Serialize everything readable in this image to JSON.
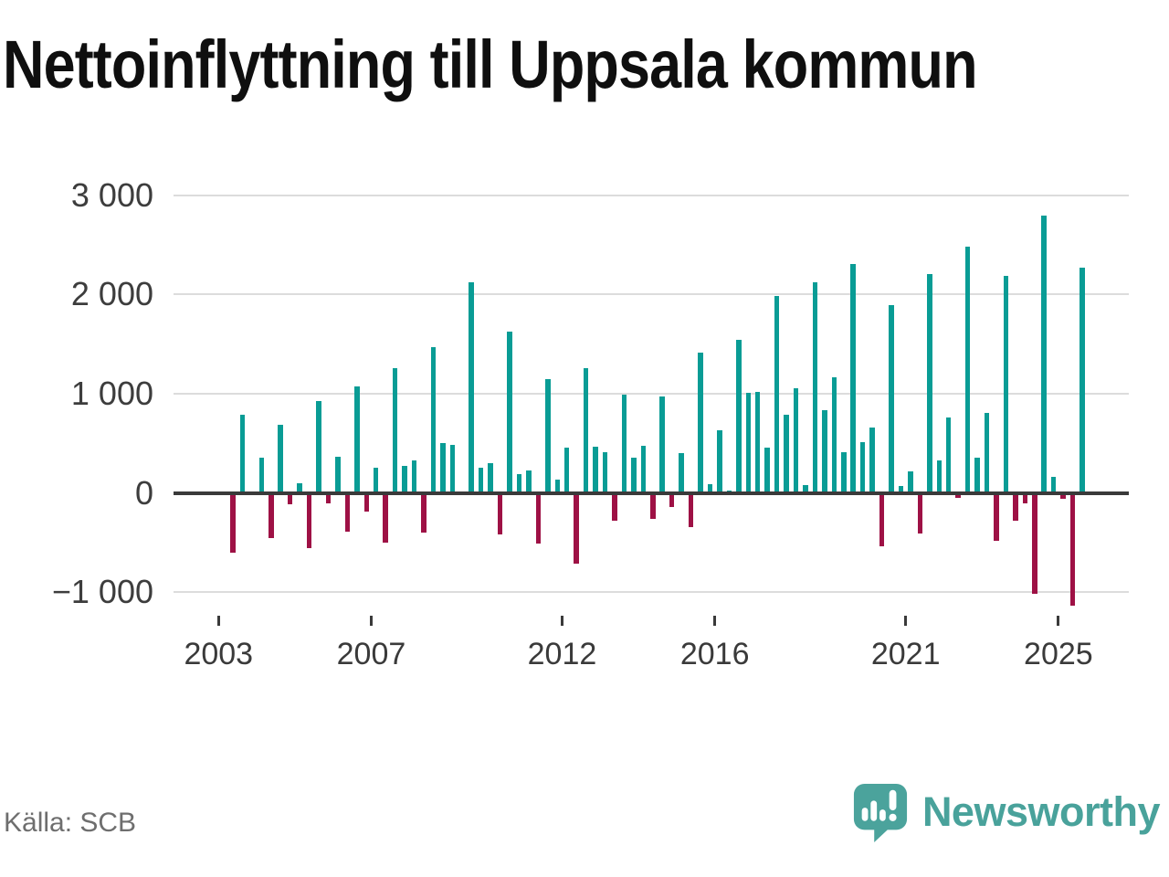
{
  "title": "Nettoinflyttning till Uppsala kommun",
  "source": "Källa: SCB",
  "branding": {
    "wordmark": "Newsworthy"
  },
  "chart_data": {
    "type": "bar",
    "title": "Nettoinflyttning till Uppsala kommun",
    "frequency": "quarterly",
    "period_start": "2003 Q1",
    "period_end": "2025 Q3",
    "y_axis": {
      "range": [
        -1250,
        3050
      ],
      "ticks": [
        {
          "value": 3000,
          "label": "3 000"
        },
        {
          "value": 2000,
          "label": "2 000"
        },
        {
          "value": 1000,
          "label": "1 000"
        },
        {
          "value": 0,
          "label": "0"
        },
        {
          "value": -1000,
          "label": "−1 000"
        }
      ]
    },
    "x_axis": {
      "tick_years": [
        2003,
        2007,
        2012,
        2016,
        2021,
        2025
      ]
    },
    "colors": {
      "positive": "#099c95",
      "negative": "#9e1145"
    },
    "grid": true,
    "legend": "none",
    "series": [
      {
        "name": "Nettoinflyttning",
        "data": [
          {
            "year": 2003,
            "quarters": [
              0,
              -605,
              790,
              0
            ]
          },
          {
            "year": 2004,
            "quarters": [
              355,
              -460,
              690,
              -115
            ]
          },
          {
            "year": 2005,
            "quarters": [
              100,
              -560,
              925,
              -110
            ]
          },
          {
            "year": 2006,
            "quarters": [
              360,
              -390,
              1070,
              -190
            ]
          },
          {
            "year": 2007,
            "quarters": [
              250,
              -500,
              1255,
              275
            ]
          },
          {
            "year": 2008,
            "quarters": [
              325,
              -400,
              1470,
              500
            ]
          },
          {
            "year": 2009,
            "quarters": [
              485,
              0,
              2125,
              255
            ]
          },
          {
            "year": 2010,
            "quarters": [
              300,
              -420,
              1620,
              185
            ]
          },
          {
            "year": 2011,
            "quarters": [
              225,
              -515,
              1150,
              130
            ]
          },
          {
            "year": 2012,
            "quarters": [
              460,
              -710,
              1255,
              465
            ]
          },
          {
            "year": 2013,
            "quarters": [
              410,
              -280,
              990,
              355
            ]
          },
          {
            "year": 2014,
            "quarters": [
              470,
              -265,
              975,
              -145
            ]
          },
          {
            "year": 2015,
            "quarters": [
              400,
              -345,
              1410,
              85
            ]
          },
          {
            "year": 2016,
            "quarters": [
              630,
              25,
              1545,
              1010
            ]
          },
          {
            "year": 2017,
            "quarters": [
              1015,
              455,
              1980,
              790
            ]
          },
          {
            "year": 2018,
            "quarters": [
              1050,
              80,
              2120,
              830
            ]
          },
          {
            "year": 2019,
            "quarters": [
              1160,
              410,
              2305,
              515
            ]
          },
          {
            "year": 2020,
            "quarters": [
              655,
              -535,
              1890,
              70
            ]
          },
          {
            "year": 2021,
            "quarters": [
              220,
              -405,
              2200,
              330
            ]
          },
          {
            "year": 2022,
            "quarters": [
              760,
              -50,
              2485,
              355
            ]
          },
          {
            "year": 2023,
            "quarters": [
              805,
              -480,
              2190,
              -280
            ]
          },
          {
            "year": 2024,
            "quarters": [
              -110,
              -1015,
              2790,
              160
            ]
          },
          {
            "year": 2025,
            "quarters": [
              -60,
              -1135,
              2265
            ]
          }
        ]
      }
    ]
  }
}
